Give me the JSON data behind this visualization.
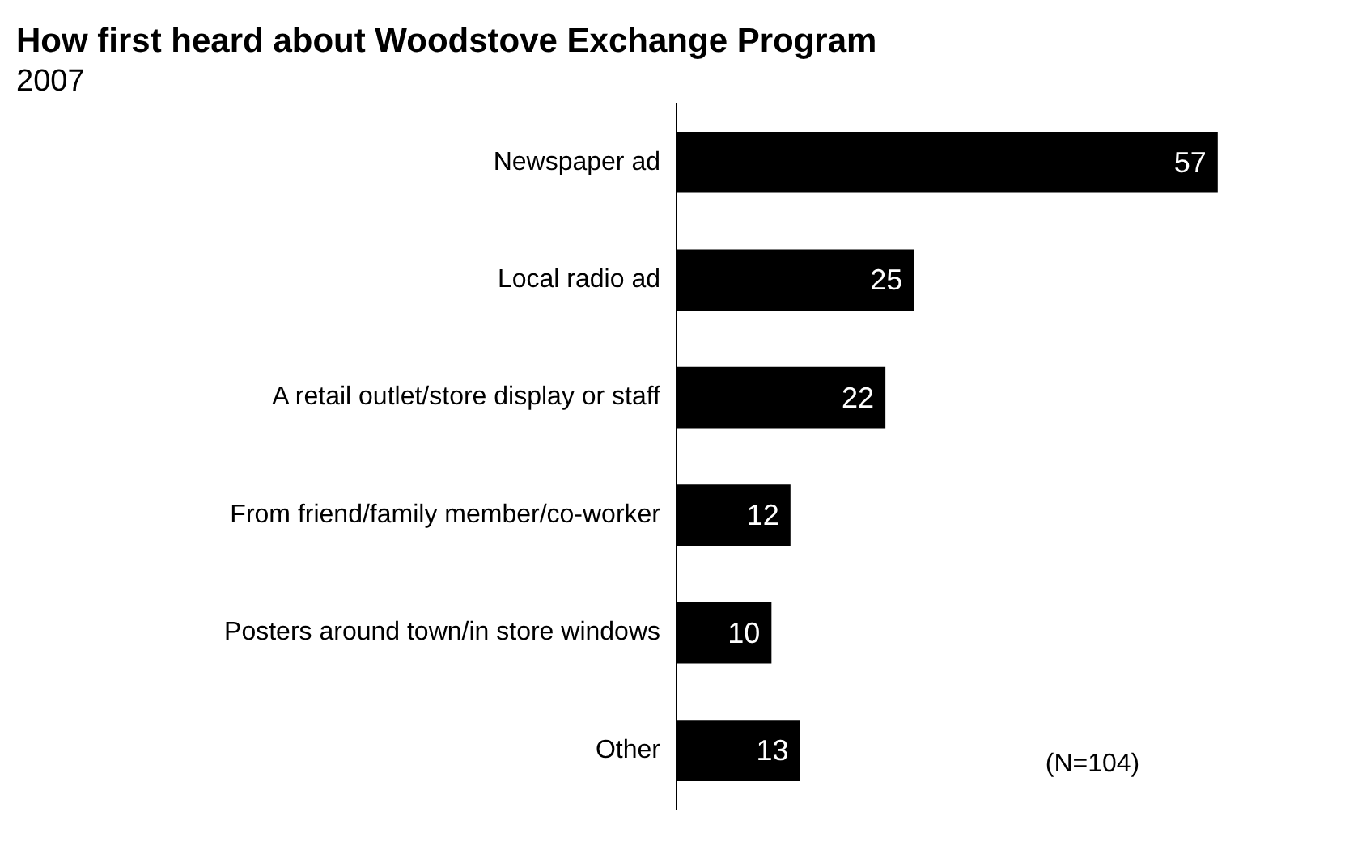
{
  "chart_data": {
    "type": "bar",
    "orientation": "horizontal",
    "title": "How first heard about Woodstove Exchange Program",
    "subtitle": "2007",
    "categories": [
      "Newspaper ad",
      "Local radio ad",
      "A retail outlet/store display or staff",
      "From friend/family member/co-worker",
      "Posters around town/in store windows",
      "Other"
    ],
    "values": [
      57,
      25,
      22,
      12,
      10,
      13
    ],
    "color": "#000000",
    "data_labels": true,
    "legend": false,
    "tick_labels": "y",
    "annotations": [
      "(N=104)"
    ]
  }
}
